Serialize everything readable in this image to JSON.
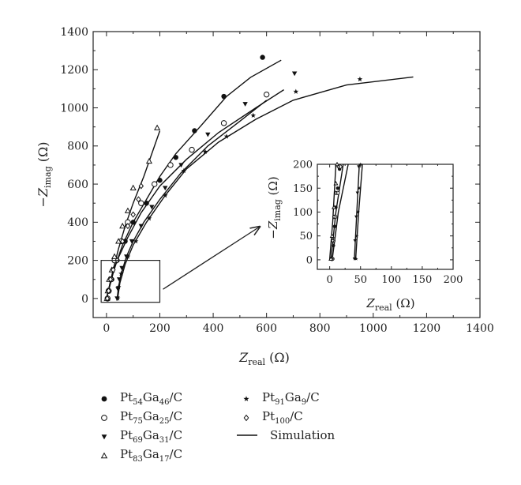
{
  "chart_data": {
    "type": "scatter",
    "xlabel": "Z_real (Ω)",
    "ylabel": "−Z_imag (Ω)",
    "xlim": [
      -50,
      1400
    ],
    "ylim": [
      -100,
      1400
    ],
    "xticks": [
      0,
      200,
      400,
      600,
      800,
      1000,
      1200,
      1400
    ],
    "yticks": [
      0,
      200,
      400,
      600,
      800,
      1000,
      1200,
      1400
    ],
    "inset": {
      "xlim": [
        -20,
        200
      ],
      "ylim": [
        -20,
        200
      ],
      "xticks": [
        0,
        50,
        100,
        150,
        200
      ],
      "yticks": [
        0,
        50,
        100,
        150,
        200
      ],
      "xlabel": "Z_real (Ω)",
      "ylabel": "−Z_imag (Ω)"
    },
    "legend_placement": "bottom",
    "series": [
      {
        "name": "Pt54Ga46/C",
        "marker": "circle-filled",
        "points": [
          [
            5,
            0
          ],
          [
            10,
            40
          ],
          [
            20,
            100
          ],
          [
            40,
            200
          ],
          [
            70,
            300
          ],
          [
            100,
            400
          ],
          [
            150,
            500
          ],
          [
            200,
            620
          ],
          [
            260,
            740
          ],
          [
            330,
            880
          ],
          [
            440,
            1060
          ],
          [
            585,
            1265
          ]
        ],
        "fit": [
          [
            0,
            0
          ],
          [
            15,
            80
          ],
          [
            30,
            160
          ],
          [
            60,
            280
          ],
          [
            100,
            400
          ],
          [
            150,
            520
          ],
          [
            200,
            640
          ],
          [
            260,
            760
          ],
          [
            350,
            900
          ],
          [
            450,
            1060
          ],
          [
            540,
            1160
          ],
          [
            655,
            1250
          ]
        ]
      },
      {
        "name": "Pt75Ga25/C",
        "marker": "circle-open",
        "points": [
          [
            4,
            0
          ],
          [
            8,
            40
          ],
          [
            16,
            100
          ],
          [
            30,
            200
          ],
          [
            55,
            300
          ],
          [
            80,
            400
          ],
          [
            130,
            500
          ],
          [
            180,
            600
          ],
          [
            240,
            700
          ],
          [
            320,
            780
          ],
          [
            440,
            920
          ],
          [
            600,
            1070
          ]
        ],
        "fit": [
          [
            0,
            0
          ],
          [
            15,
            90
          ],
          [
            40,
            200
          ],
          [
            80,
            320
          ],
          [
            130,
            450
          ],
          [
            200,
            590
          ],
          [
            300,
            730
          ],
          [
            420,
            870
          ],
          [
            560,
            1000
          ],
          [
            665,
            1095
          ]
        ]
      },
      {
        "name": "Pt69Ga31/C",
        "marker": "triangle-down-filled",
        "points": [
          [
            40,
            0
          ],
          [
            43,
            50
          ],
          [
            48,
            100
          ],
          [
            58,
            160
          ],
          [
            75,
            220
          ],
          [
            95,
            300
          ],
          [
            130,
            380
          ],
          [
            170,
            480
          ],
          [
            220,
            580
          ],
          [
            280,
            700
          ],
          [
            380,
            860
          ],
          [
            520,
            1020
          ],
          [
            705,
            1180
          ]
        ],
        "fit": [
          [
            40,
            0
          ],
          [
            45,
            60
          ],
          [
            55,
            130
          ],
          [
            75,
            220
          ],
          [
            100,
            300
          ],
          [
            140,
            400
          ],
          [
            200,
            520
          ],
          [
            280,
            660
          ],
          [
            380,
            800
          ],
          [
            500,
            930
          ],
          [
            600,
            1040
          ]
        ]
      },
      {
        "name": "Pt83Ga17/C",
        "marker": "triangle-up-open",
        "points": [
          [
            2,
            0
          ],
          [
            5,
            40
          ],
          [
            10,
            100
          ],
          [
            20,
            150
          ],
          [
            30,
            220
          ],
          [
            45,
            300
          ],
          [
            60,
            380
          ],
          [
            80,
            460
          ],
          [
            100,
            580
          ],
          [
            160,
            720
          ],
          [
            190,
            895
          ]
        ],
        "fit": [
          [
            0,
            0
          ],
          [
            10,
            60
          ],
          [
            25,
            150
          ],
          [
            45,
            260
          ],
          [
            70,
            380
          ],
          [
            100,
            500
          ],
          [
            140,
            640
          ],
          [
            200,
            880
          ]
        ]
      },
      {
        "name": "Pt91Ga9/C",
        "marker": "star-filled",
        "points": [
          [
            42,
            0
          ],
          [
            45,
            60
          ],
          [
            55,
            130
          ],
          [
            80,
            220
          ],
          [
            110,
            300
          ],
          [
            160,
            420
          ],
          [
            220,
            540
          ],
          [
            290,
            670
          ],
          [
            370,
            770
          ],
          [
            450,
            850
          ],
          [
            550,
            960
          ],
          [
            710,
            1085
          ],
          [
            950,
            1150
          ]
        ],
        "fit": [
          [
            42,
            0
          ],
          [
            50,
            80
          ],
          [
            70,
            180
          ],
          [
            100,
            280
          ],
          [
            150,
            400
          ],
          [
            220,
            540
          ],
          [
            300,
            680
          ],
          [
            420,
            820
          ],
          [
            560,
            940
          ],
          [
            700,
            1040
          ],
          [
            900,
            1120
          ],
          [
            1150,
            1162
          ]
        ]
      },
      {
        "name": "Pt100/C",
        "marker": "diamond-open",
        "points": [
          [
            3,
            0
          ],
          [
            8,
            40
          ],
          [
            15,
            100
          ],
          [
            25,
            150
          ],
          [
            40,
            200
          ],
          [
            60,
            300
          ],
          [
            80,
            380
          ],
          [
            100,
            440
          ],
          [
            120,
            520
          ],
          [
            130,
            590
          ]
        ],
        "fit": []
      },
      {
        "name": "Simulation",
        "marker": "line",
        "points": [],
        "fit": []
      }
    ],
    "inset_data": [
      {
        "marker": "circle-filled",
        "points": [
          [
            5,
            2
          ],
          [
            6,
            30
          ],
          [
            8,
            70
          ],
          [
            10,
            110
          ],
          [
            13,
            150
          ],
          [
            16,
            190
          ]
        ]
      },
      {
        "marker": "circle-open",
        "points": [
          [
            4,
            2
          ],
          [
            6,
            40
          ],
          [
            9,
            90
          ],
          [
            13,
            140
          ],
          [
            17,
            195
          ]
        ]
      },
      {
        "marker": "diamond-open",
        "points": [
          [
            3,
            2
          ],
          [
            5,
            40
          ],
          [
            7,
            90
          ],
          [
            10,
            140
          ],
          [
            14,
            195
          ]
        ]
      },
      {
        "marker": "triangle-up-open",
        "points": [
          [
            2,
            2
          ],
          [
            4,
            50
          ],
          [
            7,
            110
          ],
          [
            10,
            160
          ],
          [
            12,
            200
          ]
        ]
      },
      {
        "marker": "triangle-down-filled",
        "points": [
          [
            40,
            2
          ],
          [
            41,
            40
          ],
          [
            43,
            90
          ],
          [
            45,
            140
          ],
          [
            47,
            195
          ]
        ]
      },
      {
        "marker": "star-filled",
        "points": [
          [
            43,
            2
          ],
          [
            44,
            50
          ],
          [
            46,
            100
          ],
          [
            48,
            150
          ],
          [
            50,
            200
          ]
        ]
      }
    ],
    "inset_fits": [
      [
        [
          0,
          0
        ],
        [
          5,
          80
        ],
        [
          10,
          200
        ]
      ],
      [
        [
          2,
          0
        ],
        [
          10,
          100
        ],
        [
          22,
          200
        ]
      ],
      [
        [
          4,
          0
        ],
        [
          14,
          100
        ],
        [
          30,
          200
        ]
      ],
      [
        [
          40,
          0
        ],
        [
          44,
          100
        ],
        [
          48,
          200
        ]
      ],
      [
        [
          42,
          0
        ],
        [
          47,
          100
        ],
        [
          53,
          200
        ]
      ]
    ]
  }
}
